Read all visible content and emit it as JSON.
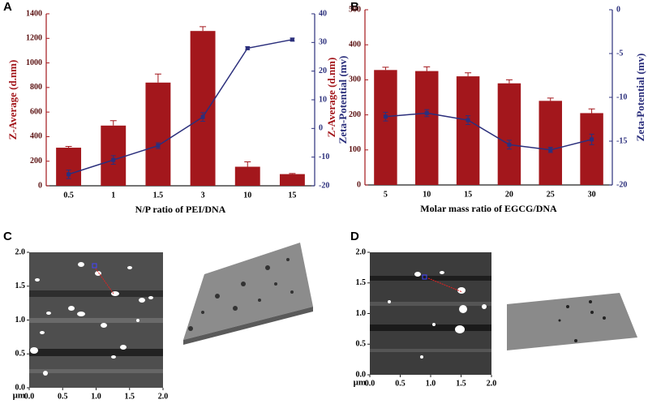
{
  "chart_data": [
    {
      "type": "bar",
      "panel": "A",
      "xlabel": "N/P ratio of PEI/DNA",
      "ylabel": "Z-Average (d.nm)",
      "y2label": "Zeta-Potential (mv)",
      "categories": [
        "0.5",
        "1",
        "1.5",
        "3",
        "10",
        "15"
      ],
      "series": [
        {
          "type": "bar",
          "color": "#a3171c",
          "values": [
            310,
            490,
            840,
            1260,
            155,
            95
          ],
          "errors": [
            10,
            40,
            70,
            35,
            40,
            5
          ]
        },
        {
          "type": "line",
          "axis": "y2",
          "color": "#2b2f7c",
          "values": [
            -16,
            -11,
            -6,
            4,
            28,
            31
          ],
          "errors": [
            1.5,
            1.5,
            1,
            1.5,
            0.5,
            0.5
          ]
        }
      ],
      "ylim": [
        0,
        1400
      ],
      "yticks": [
        0,
        200,
        400,
        600,
        800,
        1000,
        1200,
        1400
      ],
      "y2lim": [
        -20,
        40
      ],
      "y2ticks": [
        -20,
        -10,
        0,
        10,
        20,
        30,
        40
      ]
    },
    {
      "type": "bar",
      "panel": "B",
      "xlabel": "Molar mass ratio of EGCG/DNA",
      "ylabel": "Z-Average (d.nm)",
      "y2label": "Zeta-Potential (mv)",
      "categories": [
        "5",
        "10",
        "15",
        "20",
        "25",
        "30"
      ],
      "series": [
        {
          "type": "bar",
          "color": "#a3171c",
          "values": [
            328,
            325,
            310,
            290,
            240,
            205
          ],
          "errors": [
            8,
            12,
            10,
            10,
            8,
            12
          ]
        },
        {
          "type": "line",
          "axis": "y2",
          "color": "#2b2f7c",
          "values": [
            -12.2,
            -11.8,
            -12.6,
            -15.4,
            -16,
            -14.8
          ],
          "errors": [
            0.5,
            0.4,
            0.5,
            0.5,
            0.3,
            0.6
          ]
        }
      ],
      "ylim": [
        0,
        500
      ],
      "yticks": [
        0,
        100,
        200,
        300,
        400,
        500
      ],
      "y2lim": [
        -20,
        0
      ],
      "y2ticks": [
        -20,
        -15,
        -10,
        -5,
        0
      ]
    },
    {
      "type": "image",
      "panel": "C",
      "unit": "μm",
      "xlim": [
        0,
        2
      ],
      "xticks": [
        {
          "value": 0,
          "label": "0.0"
        },
        {
          "value": 0.5,
          "label": "0.5"
        },
        {
          "value": 1,
          "label": "1.0"
        },
        {
          "value": 1.5,
          "label": "1.5"
        },
        {
          "value": 2,
          "label": "2.0"
        }
      ],
      "ylim": [
        0,
        2
      ],
      "yticks": [
        {
          "value": 0,
          "label": "0.0"
        },
        {
          "value": 0.5,
          "label": "0.5"
        },
        {
          "value": 1,
          "label": "1.0"
        },
        {
          "value": 1.5,
          "label": "1.5"
        },
        {
          "value": 2,
          "label": "2.0"
        }
      ]
    },
    {
      "type": "image",
      "panel": "D",
      "unit": "μm",
      "xlim": [
        0,
        2
      ],
      "xticks": [
        {
          "value": 0,
          "label": "0.0"
        },
        {
          "value": 0.5,
          "label": "0.5"
        },
        {
          "value": 1,
          "label": "1.0"
        },
        {
          "value": 1.5,
          "label": "1.5"
        },
        {
          "value": 2,
          "label": "2.0"
        }
      ],
      "ylim": [
        0,
        2
      ],
      "yticks": [
        {
          "value": 0,
          "label": "0.0"
        },
        {
          "value": 0.5,
          "label": "0.5"
        },
        {
          "value": 1,
          "label": "1.0"
        },
        {
          "value": 1.5,
          "label": "1.5"
        },
        {
          "value": 2,
          "label": "2.0"
        }
      ]
    }
  ]
}
